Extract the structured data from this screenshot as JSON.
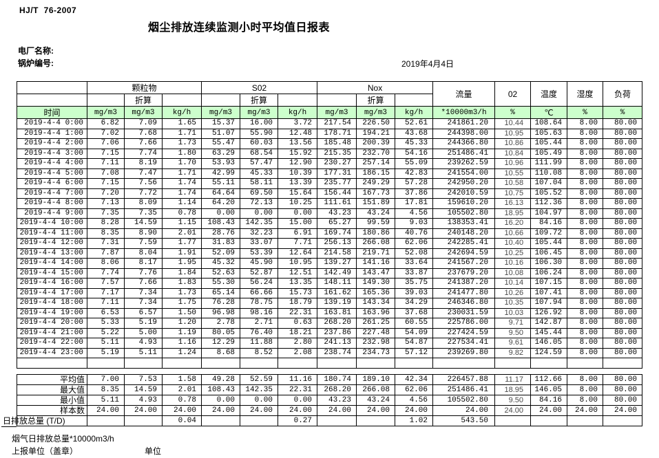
{
  "page": {
    "standard_code": "HJ/T  76-2007",
    "title": "烟尘排放连续监测小时平均值日报表",
    "plant_label": "电厂名称:",
    "boiler_label": "锅炉编号:",
    "date": "2019年4月4日"
  },
  "colors": {
    "header_green": "#ccffcc",
    "border": "#000000"
  },
  "table": {
    "time_header": "时间",
    "converted_label": "折算",
    "groups": [
      {
        "name": "颗粒物",
        "units": [
          "mg/m3",
          "mg/m3",
          "kg/h"
        ]
      },
      {
        "name": "S02",
        "units": [
          "mg/m3",
          "mg/m3",
          "kg/h"
        ]
      },
      {
        "name": "Nox",
        "units": [
          "mg/m3",
          "mg/m3",
          "kg/h"
        ]
      }
    ],
    "single_columns": [
      {
        "name": "流量",
        "unit": "*10000m3/h"
      },
      {
        "name": "02",
        "unit": "%"
      },
      {
        "name": "温度",
        "unit": "℃"
      },
      {
        "name": "湿度",
        "unit": "%"
      },
      {
        "name": "负荷",
        "unit": "%"
      }
    ],
    "rows": [
      {
        "time": "2019-4-4 0:00",
        "values": [
          "6.82",
          "7.09",
          "1.65",
          "15.37",
          "16.00",
          "3.72",
          "217.54",
          "226.50",
          "52.61",
          "241861.20",
          "10.44",
          "108.64",
          "8.00",
          "80.00"
        ]
      },
      {
        "time": "2019-4-4 1:00",
        "values": [
          "7.02",
          "7.68",
          "1.71",
          "51.07",
          "55.90",
          "12.48",
          "178.71",
          "194.21",
          "43.68",
          "244398.00",
          "10.95",
          "105.63",
          "8.00",
          "80.00"
        ]
      },
      {
        "time": "2019-4-4 2:00",
        "values": [
          "7.06",
          "7.66",
          "1.73",
          "55.47",
          "60.03",
          "13.56",
          "185.48",
          "200.39",
          "45.33",
          "244366.80",
          "10.86",
          "105.44",
          "8.00",
          "80.00"
        ]
      },
      {
        "time": "2019-4-4 3:00",
        "values": [
          "7.15",
          "7.74",
          "1.80",
          "63.29",
          "68.54",
          "15.92",
          "215.35",
          "232.70",
          "54.16",
          "251486.41",
          "10.84",
          "105.49",
          "8.00",
          "80.00"
        ]
      },
      {
        "time": "2019-4-4 4:00",
        "values": [
          "7.11",
          "8.19",
          "1.70",
          "53.93",
          "57.47",
          "12.90",
          "230.27",
          "257.14",
          "55.09",
          "239262.59",
          "10.96",
          "111.99",
          "8.00",
          "80.00"
        ]
      },
      {
        "time": "2019-4-4 5:00",
        "values": [
          "7.08",
          "7.47",
          "1.71",
          "42.99",
          "45.33",
          "10.39",
          "177.31",
          "186.15",
          "42.83",
          "241554.00",
          "10.55",
          "110.08",
          "8.00",
          "80.00"
        ]
      },
      {
        "time": "2019-4-4 6:00",
        "values": [
          "7.15",
          "7.56",
          "1.74",
          "55.11",
          "58.11",
          "13.39",
          "235.77",
          "249.29",
          "57.28",
          "242950.20",
          "10.58",
          "107.04",
          "8.00",
          "80.00"
        ]
      },
      {
        "time": "2019-4-4 7:00",
        "values": [
          "7.20",
          "7.72",
          "1.74",
          "64.64",
          "69.50",
          "15.64",
          "156.44",
          "167.73",
          "37.86",
          "242010.59",
          "10.75",
          "105.52",
          "8.00",
          "80.00"
        ]
      },
      {
        "time": "2019-4-4 8:00",
        "values": [
          "7.13",
          "8.09",
          "1.14",
          "64.20",
          "72.13",
          "10.25",
          "111.61",
          "151.89",
          "17.81",
          "159610.20",
          "16.13",
          "112.36",
          "8.00",
          "80.00"
        ]
      },
      {
        "time": "2019-4-4 9:00",
        "values": [
          "7.35",
          "7.35",
          "0.78",
          "0.00",
          "0.00",
          "0.00",
          "43.23",
          "43.24",
          "4.56",
          "105502.80",
          "18.95",
          "104.97",
          "8.00",
          "80.00"
        ]
      },
      {
        "time": "2019-4-4 10:00",
        "values": [
          "8.28",
          "14.59",
          "1.15",
          "108.43",
          "142.35",
          "15.00",
          "65.27",
          "99.59",
          "9.03",
          "138353.41",
          "16.20",
          "84.16",
          "8.00",
          "80.00"
        ]
      },
      {
        "time": "2019-4-4 11:00",
        "values": [
          "8.35",
          "8.90",
          "2.01",
          "28.76",
          "32.23",
          "6.91",
          "169.74",
          "180.86",
          "40.76",
          "240148.20",
          "10.66",
          "109.72",
          "8.00",
          "80.00"
        ]
      },
      {
        "time": "2019-4-4 12:00",
        "values": [
          "7.31",
          "7.59",
          "1.77",
          "31.83",
          "33.07",
          "7.71",
          "256.13",
          "266.08",
          "62.06",
          "242285.41",
          "10.40",
          "105.44",
          "8.00",
          "80.00"
        ]
      },
      {
        "time": "2019-4-4 13:00",
        "values": [
          "7.87",
          "8.04",
          "1.91",
          "52.09",
          "53.39",
          "12.64",
          "214.58",
          "219.71",
          "52.08",
          "242694.59",
          "10.25",
          "106.45",
          "8.00",
          "80.00"
        ]
      },
      {
        "time": "2019-4-4 14:00",
        "values": [
          "8.06",
          "8.17",
          "1.95",
          "45.32",
          "45.90",
          "10.95",
          "139.27",
          "141.16",
          "33.64",
          "241567.20",
          "10.16",
          "106.30",
          "8.00",
          "80.00"
        ]
      },
      {
        "time": "2019-4-4 15:00",
        "values": [
          "7.74",
          "7.76",
          "1.84",
          "52.63",
          "52.87",
          "12.51",
          "142.49",
          "143.47",
          "33.87",
          "237679.20",
          "10.08",
          "106.24",
          "8.00",
          "80.00"
        ]
      },
      {
        "time": "2019-4-4 16:00",
        "values": [
          "7.57",
          "7.66",
          "1.83",
          "55.30",
          "56.24",
          "13.35",
          "148.11",
          "149.30",
          "35.75",
          "241387.20",
          "10.14",
          "107.15",
          "8.00",
          "80.00"
        ]
      },
      {
        "time": "2019-4-4 17:00",
        "values": [
          "7.17",
          "7.34",
          "1.73",
          "65.14",
          "66.66",
          "15.73",
          "161.62",
          "165.36",
          "39.03",
          "241477.80",
          "10.26",
          "107.41",
          "8.00",
          "80.00"
        ]
      },
      {
        "time": "2019-4-4 18:00",
        "values": [
          "7.11",
          "7.34",
          "1.75",
          "76.28",
          "78.75",
          "18.79",
          "139.19",
          "143.34",
          "34.29",
          "246346.80",
          "10.35",
          "107.94",
          "8.00",
          "80.00"
        ]
      },
      {
        "time": "2019-4-4 19:00",
        "values": [
          "6.53",
          "6.57",
          "1.50",
          "96.98",
          "98.16",
          "22.31",
          "163.81",
          "163.96",
          "37.68",
          "230031.59",
          "10.03",
          "126.92",
          "8.00",
          "80.00"
        ]
      },
      {
        "time": "2019-4-4 20:00",
        "values": [
          "5.33",
          "5.19",
          "1.20",
          "2.78",
          "2.71",
          "0.63",
          "268.20",
          "261.25",
          "60.55",
          "225786.00",
          "9.71",
          "142.87",
          "8.00",
          "80.00"
        ]
      },
      {
        "time": "2019-4-4 21:00",
        "values": [
          "5.22",
          "5.00",
          "1.19",
          "80.05",
          "76.40",
          "18.21",
          "237.86",
          "227.48",
          "54.09",
          "227424.59",
          "9.50",
          "145.44",
          "8.00",
          "80.00"
        ]
      },
      {
        "time": "2019-4-4 22:00",
        "values": [
          "5.11",
          "4.93",
          "1.16",
          "12.29",
          "11.88",
          "2.80",
          "241.13",
          "232.98",
          "54.87",
          "227534.41",
          "9.61",
          "146.05",
          "8.00",
          "80.00"
        ]
      },
      {
        "time": "2019-4-4 23:00",
        "values": [
          "5.19",
          "5.11",
          "1.24",
          "8.68",
          "8.52",
          "2.08",
          "238.74",
          "234.73",
          "57.12",
          "239269.80",
          "9.82",
          "124.59",
          "8.00",
          "80.00"
        ]
      }
    ]
  },
  "summary": {
    "rows": [
      {
        "label": "平均值",
        "overflow": false,
        "values": [
          "7.00",
          "7.53",
          "1.58",
          "49.28",
          "52.59",
          "11.16",
          "180.74",
          "189.10",
          "42.34",
          "226457.88",
          "11.17",
          "112.66",
          "8.00",
          "80.00"
        ]
      },
      {
        "label": "最大值",
        "overflow": false,
        "values": [
          "8.35",
          "14.59",
          "2.01",
          "108.43",
          "142.35",
          "22.31",
          "268.20",
          "266.08",
          "62.06",
          "251486.41",
          "18.95",
          "146.05",
          "8.00",
          "80.00"
        ]
      },
      {
        "label": "最小值",
        "overflow": false,
        "values": [
          "5.11",
          "4.93",
          "0.78",
          "0.00",
          "0.00",
          "0.00",
          "43.23",
          "43.24",
          "4.56",
          "105502.80",
          "9.50",
          "84.16",
          "8.00",
          "80.00"
        ]
      },
      {
        "label": "样本数",
        "overflow": false,
        "values": [
          "24.00",
          "24.00",
          "24.00",
          "24.00",
          "24.00",
          "24.00",
          "24.00",
          "24.00",
          "24.00",
          "24.00",
          "24.00",
          "24.00",
          "24.00",
          "24.00"
        ]
      },
      {
        "label": "日排放总量 (T/D)",
        "overflow": true,
        "values": [
          "",
          "",
          "0.04",
          "",
          "",
          "0.27",
          "",
          "",
          "1.02",
          "543.50",
          "",
          "",
          "",
          ""
        ]
      }
    ]
  },
  "footer": {
    "total_flue_gas": "烟气日排放总量*10000m3/h",
    "report_unit": "上报单位（盖章）",
    "unit": "单位"
  }
}
